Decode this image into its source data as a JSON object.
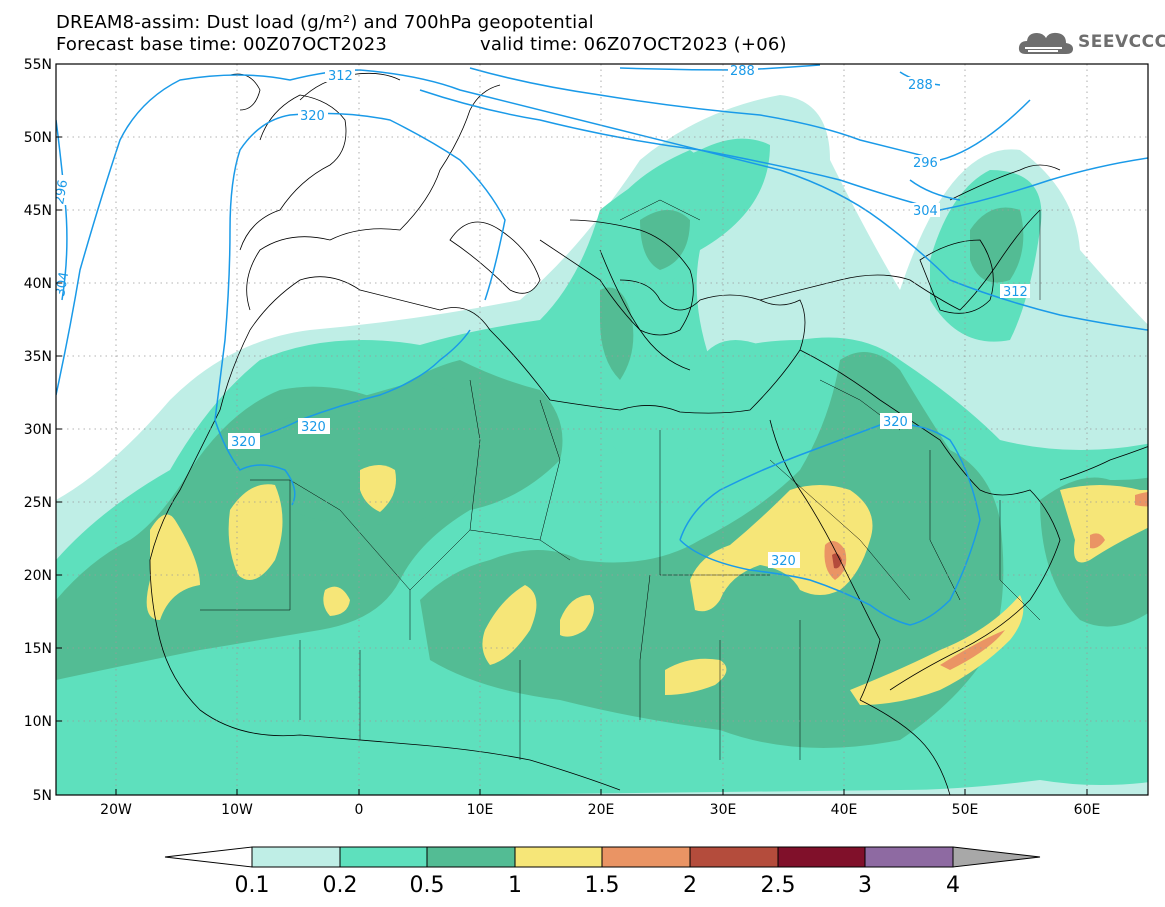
{
  "header": {
    "line1": "DREAM8-assim: Dust load (g/m²) and 700hPa geopotential",
    "line2a": "Forecast base time: 00Z07OCT2023",
    "line2b": "valid time: 06Z07OCT2023 (+06)"
  },
  "logo": {
    "text": "SEEVCCC",
    "icon": "cloud-logo-icon"
  },
  "map": {
    "lat_labels": [
      "55N",
      "50N",
      "45N",
      "40N",
      "35N",
      "30N",
      "25N",
      "20N",
      "15N",
      "10N",
      "5N"
    ],
    "lon_labels": [
      "20W",
      "10W",
      "0",
      "10E",
      "20E",
      "30E",
      "40E",
      "50E",
      "60E"
    ],
    "contour_labels": [
      "312",
      "320",
      "296",
      "304",
      "288",
      "288",
      "296",
      "304",
      "312",
      "320",
      "320",
      "320"
    ]
  },
  "colorbar": {
    "labels": [
      "0.1",
      "0.2",
      "0.5",
      "1",
      "1.5",
      "2",
      "2.5",
      "3",
      "4"
    ],
    "colors": [
      "#bfeee6",
      "#5ee0bd",
      "#53bc94",
      "#f6e678",
      "#ea9464",
      "#b44c3c",
      "#80102a",
      "#8e6aa2"
    ],
    "under_color": "#ffffff",
    "over_color": "#a8a8a8"
  },
  "colors": {
    "contour": "#1a9ae8",
    "grid": "#9a9a9a"
  }
}
